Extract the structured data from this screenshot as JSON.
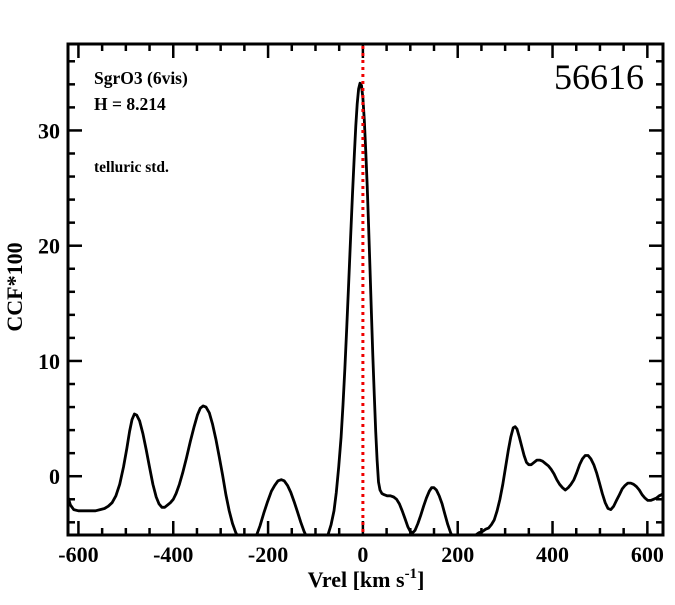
{
  "figure": {
    "background": "#ffffff",
    "epoch_label": "56616",
    "annotations": {
      "target": "SgrO3 (6vis)",
      "magnitude": "H = 8.214",
      "telluric": "telluric std.",
      "telluric_color": "#4b0082"
    }
  },
  "chart_data": {
    "type": "line",
    "title": "",
    "xlabel": {
      "prefix": "Vrel [km s",
      "superscript": "-1",
      "suffix": "]"
    },
    "ylabel": "CCF*100",
    "xlim": [
      -622,
      633
    ],
    "ylim": [
      -5.1,
      37.5
    ],
    "grid": false,
    "x_major_ticks": [
      -600,
      -400,
      -200,
      0,
      200,
      400,
      600
    ],
    "x_tick_labels": [
      "-600",
      "-400",
      "-200",
      "0",
      "200",
      "400",
      "600"
    ],
    "x_minor_tick_step": 50,
    "y_major_ticks": [
      0,
      10,
      20,
      30
    ],
    "y_tick_labels": [
      "0",
      "10",
      "20",
      "30"
    ],
    "y_minor_tick_step": 2,
    "vline": {
      "x": 0,
      "color": "#ee0000",
      "style": "dotted"
    },
    "axis_color": "#000000",
    "series": [
      {
        "name": "CCF",
        "color": "#000000",
        "points": [
          [
            -622,
            -1.8
          ],
          [
            -617,
            -2.5
          ],
          [
            -610,
            -2.9
          ],
          [
            -600,
            -3.0
          ],
          [
            -588,
            -3.0
          ],
          [
            -576,
            -3.0
          ],
          [
            -564,
            -3.0
          ],
          [
            -554,
            -2.9
          ],
          [
            -545,
            -2.8
          ],
          [
            -537,
            -2.6
          ],
          [
            -529,
            -2.3
          ],
          [
            -521,
            -1.7
          ],
          [
            -513,
            -0.7
          ],
          [
            -505,
            0.8
          ],
          [
            -498,
            2.4
          ],
          [
            -492,
            3.9
          ],
          [
            -487,
            4.9
          ],
          [
            -482,
            5.4
          ],
          [
            -477,
            5.3
          ],
          [
            -471,
            4.8
          ],
          [
            -464,
            3.7
          ],
          [
            -457,
            2.3
          ],
          [
            -450,
            0.8
          ],
          [
            -443,
            -0.7
          ],
          [
            -436,
            -1.8
          ],
          [
            -430,
            -2.4
          ],
          [
            -424,
            -2.7
          ],
          [
            -418,
            -2.7
          ],
          [
            -412,
            -2.5
          ],
          [
            -406,
            -2.3
          ],
          [
            -400,
            -2.0
          ],
          [
            -394,
            -1.5
          ],
          [
            -387,
            -0.7
          ],
          [
            -380,
            0.3
          ],
          [
            -372,
            1.6
          ],
          [
            -364,
            3.0
          ],
          [
            -356,
            4.3
          ],
          [
            -349,
            5.3
          ],
          [
            -343,
            5.9
          ],
          [
            -337,
            6.1
          ],
          [
            -331,
            6.0
          ],
          [
            -324,
            5.5
          ],
          [
            -317,
            4.5
          ],
          [
            -310,
            3.2
          ],
          [
            -303,
            1.7
          ],
          [
            -296,
            0.1
          ],
          [
            -289,
            -1.6
          ],
          [
            -282,
            -3.0
          ],
          [
            -275,
            -4.1
          ],
          [
            -268,
            -4.9
          ],
          [
            -260,
            -5.5
          ],
          [
            -251,
            -5.9
          ],
          [
            -242,
            -6.0
          ],
          [
            -233,
            -5.7
          ],
          [
            -225,
            -5.2
          ],
          [
            -217,
            -4.3
          ],
          [
            -209,
            -3.2
          ],
          [
            -201,
            -2.2
          ],
          [
            -193,
            -1.3
          ],
          [
            -186,
            -0.8
          ],
          [
            -179,
            -0.4
          ],
          [
            -172,
            -0.3
          ],
          [
            -166,
            -0.4
          ],
          [
            -159,
            -0.8
          ],
          [
            -152,
            -1.4
          ],
          [
            -145,
            -2.2
          ],
          [
            -138,
            -3.1
          ],
          [
            -131,
            -4.0
          ],
          [
            -124,
            -4.8
          ],
          [
            -117,
            -5.4
          ],
          [
            -110,
            -5.8
          ],
          [
            -102,
            -6.0
          ],
          [
            -94,
            -6.1
          ],
          [
            -86,
            -5.9
          ],
          [
            -79,
            -5.5
          ],
          [
            -73,
            -5.0
          ],
          [
            -67,
            -4.2
          ],
          [
            -61,
            -3.0
          ],
          [
            -56,
            -1.4
          ],
          [
            -51,
            0.8
          ],
          [
            -46,
            3.4
          ],
          [
            -42,
            6.2
          ],
          [
            -38,
            9.4
          ],
          [
            -34,
            13.0
          ],
          [
            -30,
            16.8
          ],
          [
            -26,
            20.7
          ],
          [
            -22,
            24.5
          ],
          [
            -18,
            28.0
          ],
          [
            -15,
            30.4
          ],
          [
            -12,
            32.3
          ],
          [
            -9,
            33.6
          ],
          [
            -6,
            34.1
          ],
          [
            -3,
            33.9
          ],
          [
            0,
            32.8
          ],
          [
            3,
            30.9
          ],
          [
            6,
            28.3
          ],
          [
            9,
            25.2
          ],
          [
            12,
            21.7
          ],
          [
            15,
            18.0
          ],
          [
            18,
            14.2
          ],
          [
            21,
            10.5
          ],
          [
            24,
            7.0
          ],
          [
            27,
            3.9
          ],
          [
            30,
            1.4
          ],
          [
            33,
            -0.5
          ],
          [
            36,
            -1.2
          ],
          [
            40,
            -1.5
          ],
          [
            45,
            -1.6
          ],
          [
            51,
            -1.7
          ],
          [
            58,
            -1.7
          ],
          [
            65,
            -1.8
          ],
          [
            71,
            -2.0
          ],
          [
            77,
            -2.4
          ],
          [
            83,
            -3.0
          ],
          [
            89,
            -3.7
          ],
          [
            95,
            -4.4
          ],
          [
            100,
            -4.8
          ],
          [
            105,
            -4.9
          ],
          [
            110,
            -4.7
          ],
          [
            116,
            -4.1
          ],
          [
            122,
            -3.4
          ],
          [
            128,
            -2.6
          ],
          [
            134,
            -1.9
          ],
          [
            140,
            -1.3
          ],
          [
            145,
            -1.0
          ],
          [
            150,
            -1.0
          ],
          [
            155,
            -1.2
          ],
          [
            161,
            -1.7
          ],
          [
            167,
            -2.4
          ],
          [
            173,
            -3.3
          ],
          [
            179,
            -4.2
          ],
          [
            185,
            -4.9
          ],
          [
            191,
            -5.4
          ],
          [
            198,
            -5.8
          ],
          [
            205,
            -6.0
          ],
          [
            212,
            -5.8
          ],
          [
            218,
            -5.5
          ],
          [
            224,
            -5.3
          ],
          [
            231,
            -5.2
          ],
          [
            238,
            -5.1
          ],
          [
            245,
            -4.9
          ],
          [
            252,
            -4.8
          ],
          [
            259,
            -4.6
          ],
          [
            265,
            -4.5
          ],
          [
            271,
            -4.2
          ],
          [
            277,
            -3.8
          ],
          [
            283,
            -3.0
          ],
          [
            289,
            -2.0
          ],
          [
            295,
            -0.7
          ],
          [
            301,
            0.8
          ],
          [
            307,
            2.3
          ],
          [
            312,
            3.4
          ],
          [
            317,
            4.2
          ],
          [
            321,
            4.3
          ],
          [
            325,
            4.1
          ],
          [
            330,
            3.4
          ],
          [
            335,
            2.6
          ],
          [
            340,
            1.8
          ],
          [
            345,
            1.2
          ],
          [
            350,
            1.0
          ],
          [
            355,
            1.0
          ],
          [
            361,
            1.2
          ],
          [
            367,
            1.4
          ],
          [
            373,
            1.4
          ],
          [
            379,
            1.3
          ],
          [
            385,
            1.1
          ],
          [
            391,
            0.9
          ],
          [
            397,
            0.6
          ],
          [
            403,
            0.2
          ],
          [
            409,
            -0.3
          ],
          [
            415,
            -0.7
          ],
          [
            421,
            -1.0
          ],
          [
            427,
            -1.2
          ],
          [
            433,
            -1.0
          ],
          [
            439,
            -0.7
          ],
          [
            445,
            -0.3
          ],
          [
            451,
            0.3
          ],
          [
            457,
            1.0
          ],
          [
            463,
            1.5
          ],
          [
            469,
            1.8
          ],
          [
            475,
            1.8
          ],
          [
            481,
            1.5
          ],
          [
            487,
            1.0
          ],
          [
            493,
            0.3
          ],
          [
            499,
            -0.6
          ],
          [
            505,
            -1.5
          ],
          [
            511,
            -2.3
          ],
          [
            517,
            -2.8
          ],
          [
            523,
            -2.9
          ],
          [
            529,
            -2.6
          ],
          [
            535,
            -2.1
          ],
          [
            541,
            -1.6
          ],
          [
            547,
            -1.1
          ],
          [
            553,
            -0.8
          ],
          [
            559,
            -0.6
          ],
          [
            565,
            -0.6
          ],
          [
            571,
            -0.7
          ],
          [
            577,
            -0.9
          ],
          [
            583,
            -1.2
          ],
          [
            589,
            -1.6
          ],
          [
            595,
            -1.9
          ],
          [
            601,
            -2.1
          ],
          [
            607,
            -2.1
          ],
          [
            613,
            -2.0
          ],
          [
            619,
            -1.9
          ],
          [
            625,
            -1.7
          ],
          [
            630,
            -1.6
          ],
          [
            633,
            -1.5
          ]
        ]
      }
    ]
  }
}
